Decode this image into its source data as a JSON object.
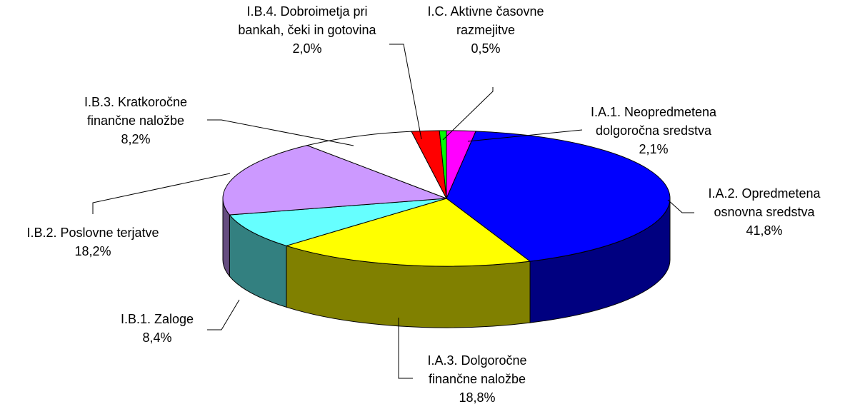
{
  "chart_data": {
    "type": "pie3d",
    "categories": [
      "I.A.1. Neopredmetena dolgoročna sredstva",
      "I.A.2. Opredmetena osnovna sredstva",
      "I.A.3. Dolgoročne finančne naložbe",
      "I.B.1. Zaloge",
      "I.B.2. Poslovne terjatve",
      "I.B.3. Kratkoročne finančne naložbe",
      "I.B.4. Dobroimetja pri bankah, čeki in gotovina",
      "I.C. Aktivne časovne razmejitve"
    ],
    "values": [
      2.1,
      41.8,
      18.8,
      8.4,
      18.2,
      8.2,
      2.0,
      0.5
    ],
    "value_labels": [
      "2,1%",
      "41,8%",
      "18,8%",
      "8,4%",
      "18,2%",
      "8,2%",
      "2,0%",
      "0,5%"
    ],
    "colors": [
      "#ff00ff",
      "#0000ff",
      "#ffff00",
      "#66ffff",
      "#cc99ff",
      "#ffffff",
      "#ff0000",
      "#00ff00"
    ]
  }
}
